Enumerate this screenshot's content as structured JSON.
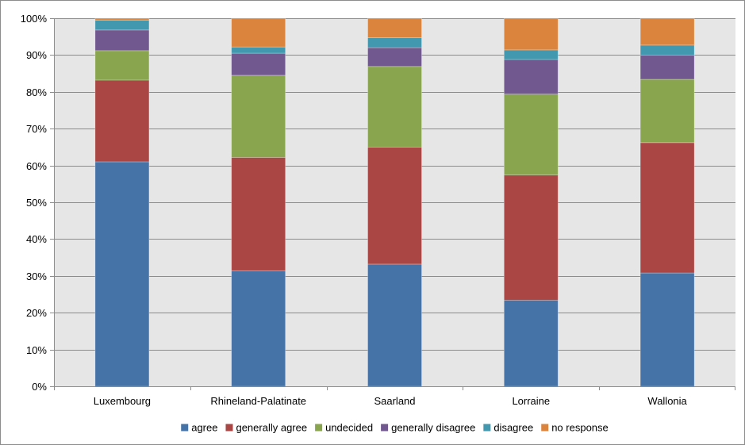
{
  "chart_data": {
    "type": "bar",
    "stacked": true,
    "percent_stacked": true,
    "categories": [
      "Luxembourg",
      "Rhineland-Palatinate",
      "Saarland",
      "Lorraine",
      "Wallonia"
    ],
    "series": [
      {
        "name": "agree",
        "color": "#4572A7",
        "values": [
          61.0,
          31.4,
          33.2,
          23.4,
          30.8
        ]
      },
      {
        "name": "generally agree",
        "color": "#AA4643",
        "values": [
          22.2,
          30.8,
          31.8,
          34.0,
          35.4
        ]
      },
      {
        "name": "undecided",
        "color": "#89A54E",
        "values": [
          8.0,
          22.3,
          21.9,
          22.0,
          17.2
        ]
      },
      {
        "name": "generally disagree",
        "color": "#71588F",
        "values": [
          5.6,
          6.0,
          5.1,
          9.4,
          6.6
        ]
      },
      {
        "name": "disagree",
        "color": "#4198AF",
        "values": [
          2.7,
          1.7,
          2.7,
          2.6,
          2.7
        ]
      },
      {
        "name": "no response",
        "color": "#DB843D",
        "values": [
          0.5,
          7.8,
          5.3,
          8.6,
          7.3
        ]
      }
    ],
    "y_ticks": [
      "0%",
      "10%",
      "20%",
      "30%",
      "40%",
      "50%",
      "60%",
      "70%",
      "80%",
      "90%",
      "100%"
    ],
    "ylim": [
      0,
      100
    ],
    "grid": true,
    "legend_position": "bottom",
    "title": "",
    "xlabel": "",
    "ylabel": ""
  },
  "colors": {
    "plot_background": "#E6E6E6",
    "gridline": "#8C8C8C",
    "axis": "#8C8C8C"
  }
}
